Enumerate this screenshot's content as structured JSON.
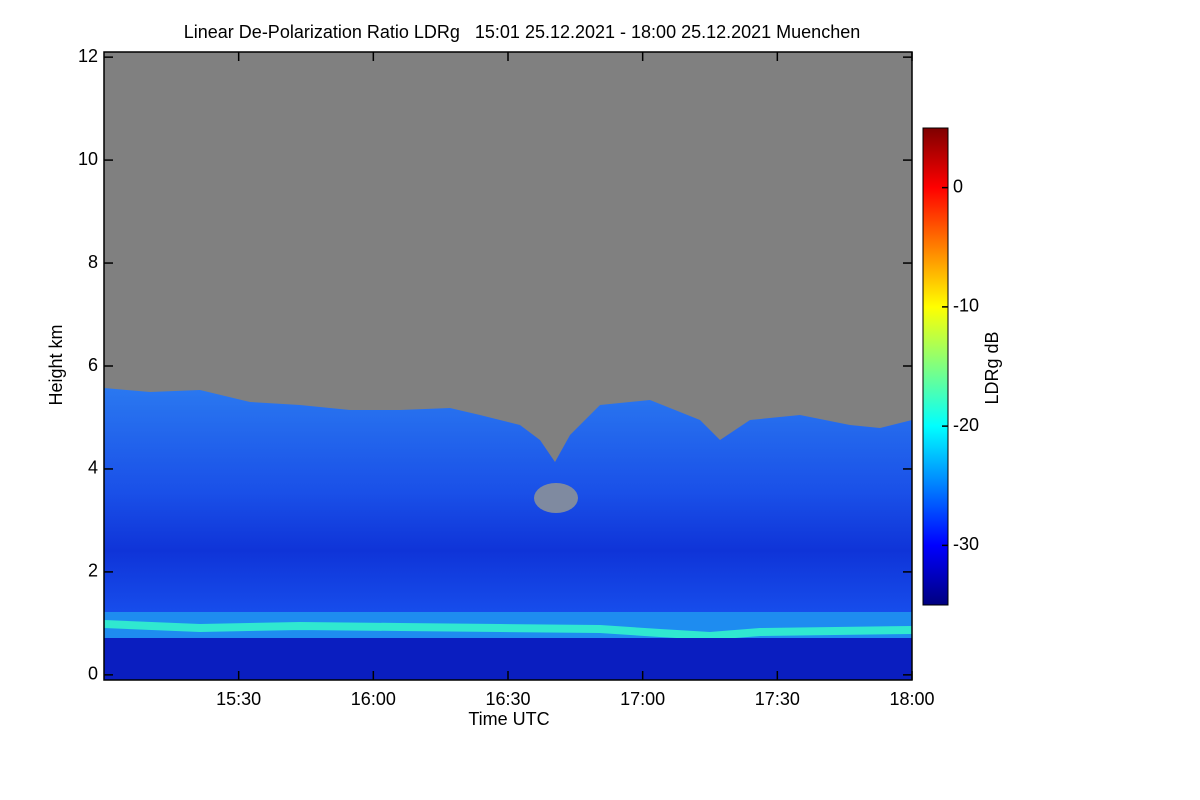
{
  "chart_data": {
    "type": "heatmap",
    "title": "Linear De-Polarization Ratio LDRg   15:01 25.12.2021 - 18:00 25.12.2021 Muenchen",
    "x_label": "Time UTC",
    "y_label": "Height km",
    "xlim": [
      15.0,
      18.0
    ],
    "xticks": [
      {
        "value": 15.5,
        "label": "15:30"
      },
      {
        "value": 16.0,
        "label": "16:00"
      },
      {
        "value": 16.5,
        "label": "16:30"
      },
      {
        "value": 17.0,
        "label": "17:00"
      },
      {
        "value": 17.5,
        "label": "17:30"
      },
      {
        "value": 18.0,
        "label": "18:00"
      }
    ],
    "ylim": [
      -0.1,
      12.1
    ],
    "yticks": [
      0,
      2,
      4,
      6,
      8,
      10,
      12
    ],
    "colorbar": {
      "label": "LDRg dB",
      "lim": [
        -35,
        5
      ],
      "ticks": [
        0,
        -10,
        -20,
        -30
      ],
      "colormap": [
        "#00007f",
        "#0000ff",
        "#0080ff",
        "#00ffff",
        "#80ff80",
        "#ffff00",
        "#ff8000",
        "#ff0000",
        "#7f0000"
      ]
    }
  }
}
